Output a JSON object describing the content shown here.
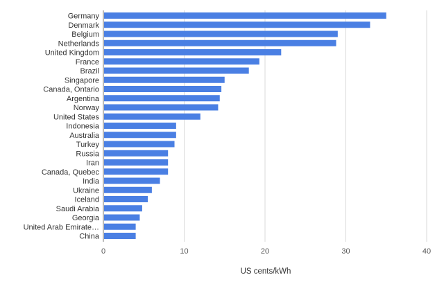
{
  "chart_data": {
    "type": "bar",
    "orientation": "horizontal",
    "categories": [
      "Germany",
      "Denmark",
      "Belgium",
      "Netherlands",
      "United Kingdom",
      "France",
      "Brazil",
      "Singapore",
      "Canada, Ontario",
      "Argentina",
      "Norway",
      "United States",
      "Indonesia",
      "Australia",
      "Turkey",
      "Russia",
      "Iran",
      "Canada, Quebec",
      "India",
      "Ukraine",
      "Iceland",
      "Saudi Arabia",
      "Georgia",
      "United Arab Emirate…",
      "China"
    ],
    "values": [
      35,
      33,
      29,
      28.8,
      22,
      19.3,
      18,
      15,
      14.6,
      14.4,
      14.2,
      12,
      9,
      9,
      8.8,
      8,
      8,
      8,
      7,
      6,
      5.5,
      4.8,
      4.5,
      4,
      4
    ],
    "xlabel": "US cents/kWh",
    "ylabel": "",
    "xlim": [
      0,
      40
    ],
    "xticks": [
      "0",
      "10",
      "20",
      "30",
      "40"
    ],
    "grid": true,
    "legend": "none",
    "bar_color": "#4a7fe3"
  }
}
